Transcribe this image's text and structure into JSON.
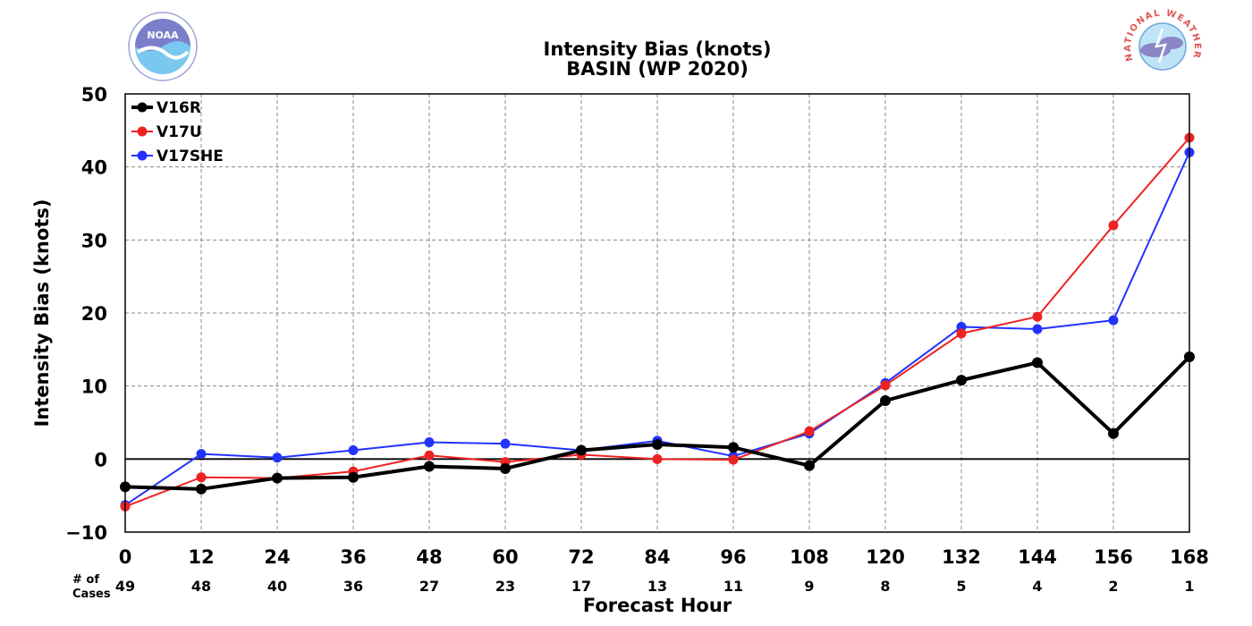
{
  "logos": {
    "left": {
      "icon": "noaa-logo",
      "text": "NOAA"
    },
    "right": {
      "icon": "nws-logo",
      "text": "NATIONAL WEATHER SERVICE"
    }
  },
  "chart_data": {
    "type": "line",
    "title": "Intensity Bias (knots)",
    "subtitle": "BASIN (WP 2020)",
    "xlabel": "Forecast Hour",
    "ylabel": "Intensity Bias (knots)",
    "xlim": [
      0,
      168
    ],
    "ylim": [
      -10,
      50
    ],
    "grid": true,
    "legend_position": "top-left",
    "x": [
      0,
      12,
      24,
      36,
      48,
      60,
      72,
      84,
      96,
      108,
      120,
      132,
      144,
      156,
      168
    ],
    "x_ticks": [
      "0",
      "12",
      "24",
      "36",
      "48",
      "60",
      "72",
      "84",
      "96",
      "108",
      "120",
      "132",
      "144",
      "156",
      "168"
    ],
    "y_ticks": [
      "50",
      "40",
      "30",
      "20",
      "10",
      "0",
      "−10"
    ],
    "cases_label": [
      "# of",
      "Cases"
    ],
    "cases": [
      "49",
      "48",
      "40",
      "36",
      "27",
      "23",
      "17",
      "13",
      "11",
      "9",
      "8",
      "5",
      "4",
      "2",
      "1"
    ],
    "series": [
      {
        "name": "V16R",
        "color": "#000000",
        "values": [
          -3.8,
          -4.1,
          -2.6,
          -2.5,
          -1.0,
          -1.3,
          1.2,
          2.0,
          1.6,
          -0.9,
          8.0,
          10.8,
          13.2,
          3.5,
          14.0
        ]
      },
      {
        "name": "V17U",
        "color": "#ee2222",
        "values": [
          -6.5,
          -2.5,
          -2.6,
          -1.7,
          0.5,
          -0.4,
          0.6,
          0.0,
          -0.1,
          3.8,
          10.1,
          17.2,
          19.5,
          32.0,
          44.0
        ]
      },
      {
        "name": "V17SHE",
        "color": "#2233ff",
        "values": [
          -6.3,
          0.7,
          0.2,
          1.2,
          2.3,
          2.1,
          1.2,
          2.5,
          0.4,
          3.5,
          10.4,
          18.1,
          17.8,
          19.0,
          42.0
        ]
      }
    ]
  }
}
